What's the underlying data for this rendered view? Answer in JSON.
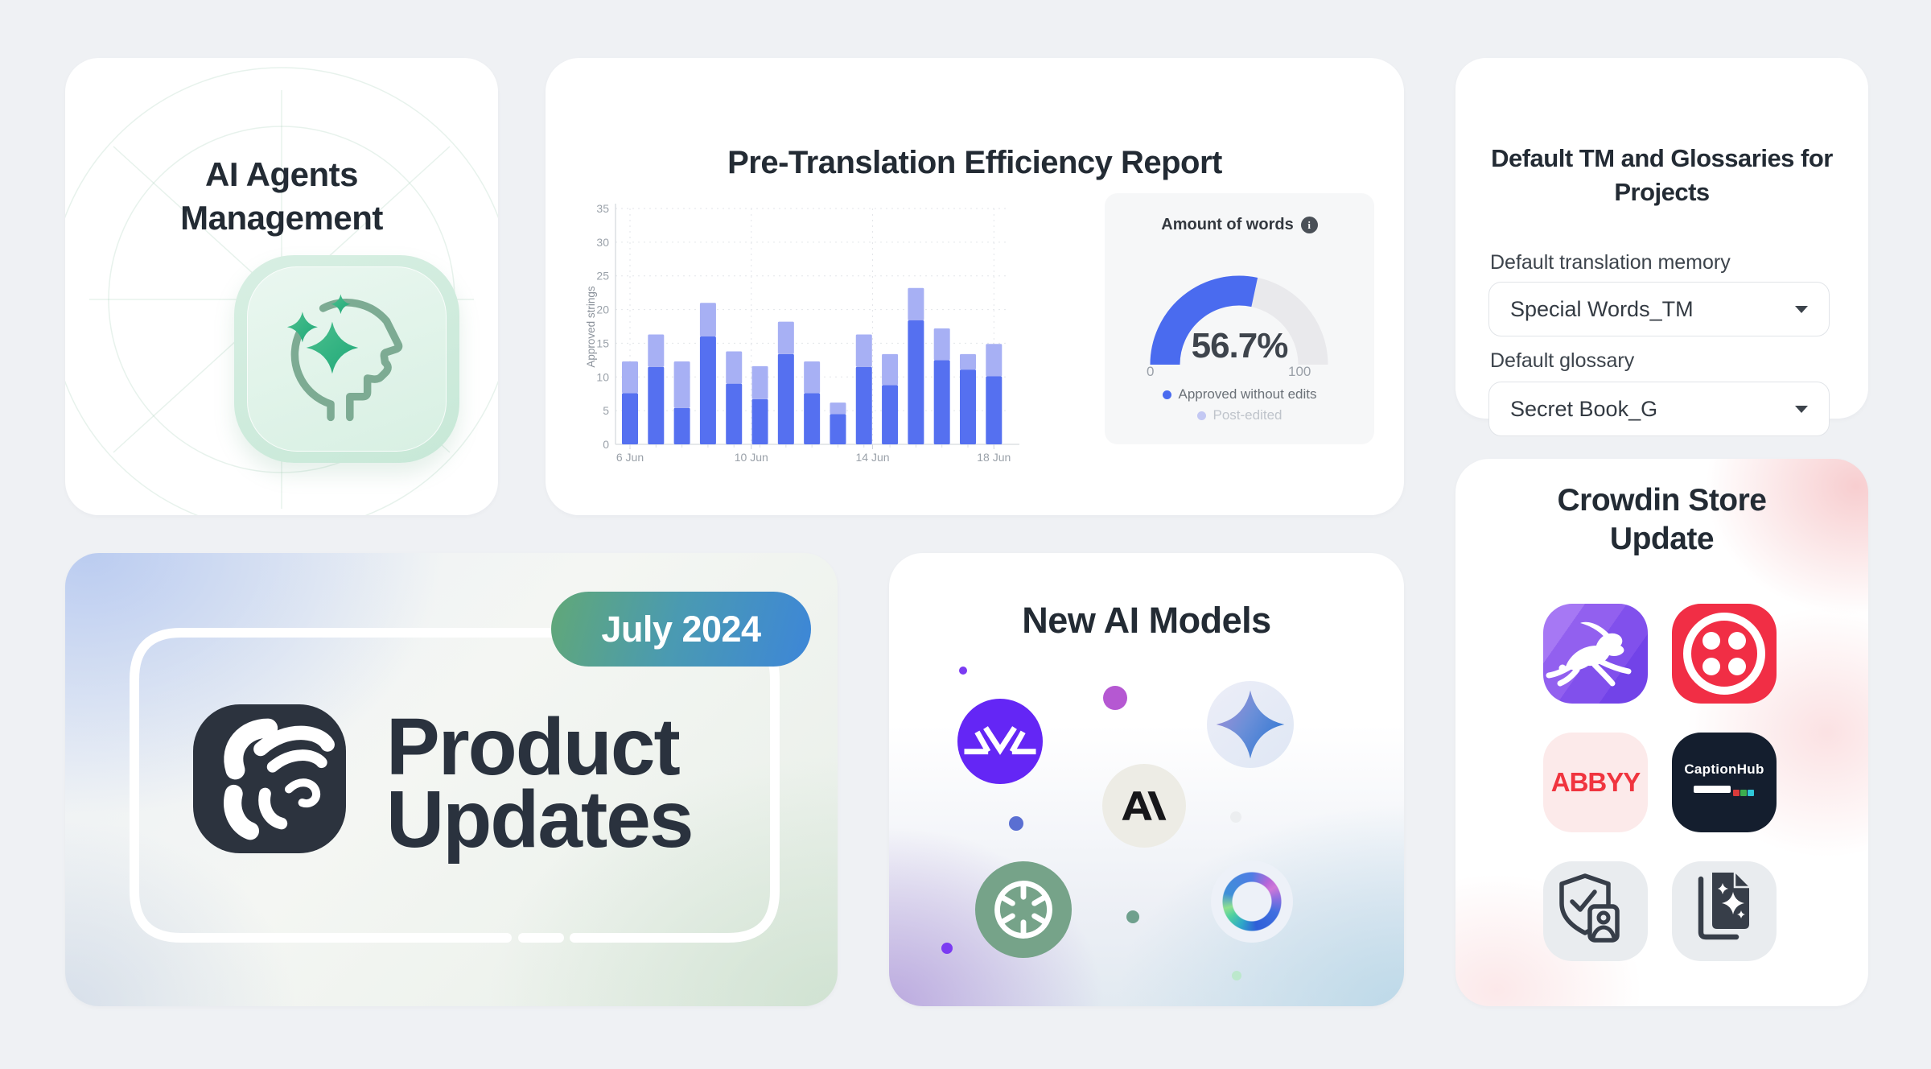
{
  "page": {
    "background": "#eff1f4"
  },
  "cards": {
    "ai_agents": {
      "title_line1": "AI Agents",
      "title_line2": "Management",
      "icon": "ai-head-sparkles-icon"
    },
    "report": {
      "title": "Pre-Translation Efficiency Report"
    },
    "defaults": {
      "title_line1": "Default TM and Glossaries for",
      "title_line2": "Projects",
      "tm_label": "Default translation memory",
      "tm_value": "Special Words_TM",
      "glossary_label": "Default glossary",
      "glossary_value": "Secret Book_G"
    },
    "product_updates": {
      "badge": "July 2024",
      "title_line1": "Product",
      "title_line2": "Updates",
      "logo": "crowdin-logo"
    },
    "new_ai_models": {
      "title": "New AI Models",
      "icons": [
        "purple-v-model-icon",
        "gemini-sparkle-icon",
        "anthropic-icon",
        "openai-icon",
        "gradient-ring-model-icon"
      ]
    },
    "store": {
      "title_line1": "Crowdin Store",
      "title_line2": "Update",
      "abbyy_label": "ABBYY",
      "captionhub_label": "CaptionHub",
      "apps": [
        "rabbit-app",
        "twilio-app",
        "abbyy-app",
        "captionhub-app",
        "id-verification-app",
        "smart-pages-app"
      ]
    }
  },
  "chart_data": [
    {
      "type": "bar",
      "stacked": true,
      "title": "Pre-Translation Efficiency Report",
      "xlabel": "",
      "ylabel": "Approved strings",
      "x_tick_labels": [
        "6 Jun",
        "10 Jun",
        "14 Jun",
        "18 Jun"
      ],
      "y_ticks": [
        0,
        5,
        10,
        15,
        20,
        25,
        30,
        35
      ],
      "ylim": [
        0,
        35
      ],
      "grid": "dotted",
      "series": [
        {
          "name": "Approved without edits",
          "color": "#5570f0",
          "values": [
            7.6,
            11.5,
            5.4,
            16.0,
            9.0,
            6.7,
            13.4,
            7.6,
            4.5,
            11.5,
            8.8,
            18.4,
            12.5,
            11.1,
            10.1
          ]
        },
        {
          "name": "Post-edited",
          "color": "#a7b0f4",
          "values": [
            4.7,
            4.8,
            6.9,
            5.0,
            4.8,
            4.9,
            4.8,
            4.7,
            1.7,
            4.8,
            4.6,
            4.8,
            4.7,
            2.3,
            4.8
          ]
        }
      ]
    },
    {
      "type": "gauge",
      "title": "Amount of words",
      "value": 56.7,
      "value_label": "56.7%",
      "range": [
        0,
        100
      ],
      "min_label": "0",
      "max_label": "100",
      "colors": {
        "value": "#4a6bef",
        "track": "#e9e9ec"
      },
      "legend": [
        {
          "label": "Approved without edits",
          "color": "#4a6bef",
          "muted": false
        },
        {
          "label": "Post-edited",
          "color": "#c3c8f3",
          "muted": true
        }
      ]
    }
  ]
}
